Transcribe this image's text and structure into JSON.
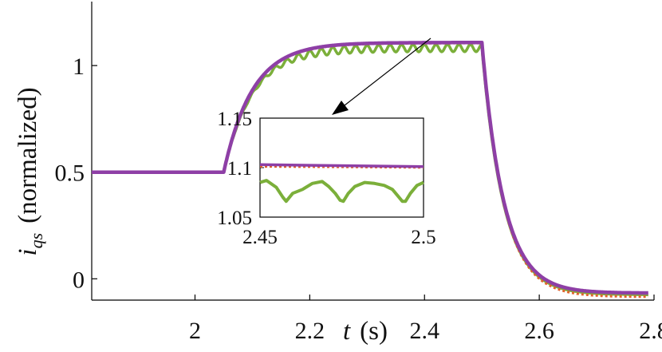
{
  "chart_data": [
    {
      "type": "line",
      "panel": "main",
      "xlabel_var": "t",
      "xlabel_unit": "(s)",
      "ylabel_var": "i",
      "ylabel_sub": "qs",
      "ylabel_text": "(normalized)",
      "xlim": [
        1.82,
        2.8
      ],
      "ylim": [
        -0.1,
        1.3
      ],
      "x_ticks": [
        2,
        2.2,
        2.4,
        2.6,
        2.8
      ],
      "x_tick_labels": [
        "2",
        "2.2",
        "2.4",
        "2.6",
        "2.8"
      ],
      "y_ticks": [
        0,
        0.5,
        1
      ],
      "y_tick_labels": [
        "0",
        "0.5",
        "1"
      ],
      "grid": false,
      "legend": "none",
      "series": [
        {
          "color": "#E0622C",
          "style": "dotted",
          "model": "exp",
          "y0": 0.5,
          "t_step_up": 2.05,
          "t_step_down": 2.5,
          "y_high": 1.105,
          "tau_up": 0.05,
          "y_low": -0.085,
          "tau_down": 0.038
        },
        {
          "color": "#7BAF3A",
          "style": "solid",
          "model": "exp_ripple",
          "y0": 0.5,
          "t_step_up": 2.05,
          "t_step_down": 2.5,
          "y_high": 1.082,
          "tau_up": 0.05,
          "y_low": -0.075,
          "tau_down": 0.038,
          "ripple_amplitude": 0.017,
          "ripple_period": 0.02
        },
        {
          "color": "#8E3FA6",
          "style": "solid",
          "model": "exp",
          "y0": 0.5,
          "t_step_up": 2.05,
          "t_step_down": 2.5,
          "y_high": 1.108,
          "tau_up": 0.05,
          "y_low": -0.067,
          "tau_down": 0.038
        }
      ]
    },
    {
      "type": "line",
      "panel": "inset",
      "xlim": [
        2.45,
        2.5
      ],
      "ylim": [
        1.05,
        1.15
      ],
      "x_ticks": [
        2.45,
        2.5
      ],
      "x_tick_labels": [
        "2.45",
        "2.5"
      ],
      "y_ticks": [
        1.05,
        1.1,
        1.15
      ],
      "y_tick_labels": [
        "1.05",
        "1.1",
        "1.15"
      ],
      "grid": false,
      "series": [
        {
          "color": "#E0622C",
          "style": "dotted",
          "x": [
            2.45,
            2.5
          ],
          "y": [
            1.101,
            1.1
          ]
        },
        {
          "color": "#7BAF3A",
          "style": "solid",
          "x": [
            2.45,
            2.452,
            2.455,
            2.457,
            2.458,
            2.46,
            2.463,
            2.466,
            2.469,
            2.471,
            2.473,
            2.4745,
            2.4755,
            2.477,
            2.479,
            2.482,
            2.485,
            2.488,
            2.4905,
            2.492,
            2.4935,
            2.4945,
            2.496,
            2.498,
            2.5
          ],
          "y": [
            1.085,
            1.087,
            1.08,
            1.07,
            1.066,
            1.074,
            1.078,
            1.084,
            1.086,
            1.081,
            1.074,
            1.067,
            1.066,
            1.074,
            1.081,
            1.085,
            1.084,
            1.082,
            1.078,
            1.072,
            1.066,
            1.066,
            1.074,
            1.082,
            1.085
          ]
        },
        {
          "color": "#8E3FA6",
          "style": "solid",
          "x": [
            2.45,
            2.5
          ],
          "y": [
            1.103,
            1.101
          ]
        }
      ]
    }
  ]
}
